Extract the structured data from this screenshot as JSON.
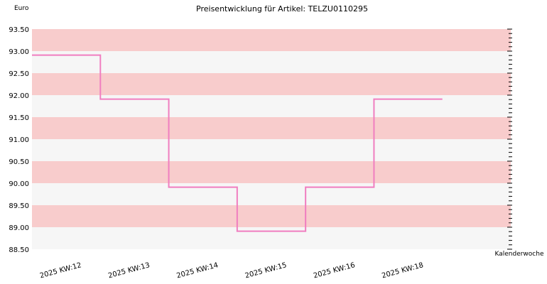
{
  "chart_data": {
    "type": "line",
    "step": true,
    "title": "Preisentwicklung für Artikel: TELZU0110295",
    "ylabel": "Euro",
    "xlabel": "Kalenderwoche",
    "ylim": [
      88.5,
      93.5
    ],
    "ytick_step": 0.5,
    "ytick_labels": [
      "88.50",
      "89.00",
      "89.50",
      "90.00",
      "90.50",
      "91.00",
      "91.50",
      "92.00",
      "92.50",
      "93.00",
      "93.50"
    ],
    "categories": [
      "2025 KW:12",
      "2025 KW:13",
      "2025 KW:14",
      "2025 KW:15",
      "2025 KW:16",
      "2025 KW:18"
    ],
    "series": [
      {
        "values": [
          92.91,
          91.91,
          89.91,
          88.91,
          89.91,
          91.91
        ]
      }
    ],
    "band_colors": [
      "#f6f6f6",
      "#f8cccc"
    ],
    "line_color": "#f07ec0",
    "grid": false
  }
}
